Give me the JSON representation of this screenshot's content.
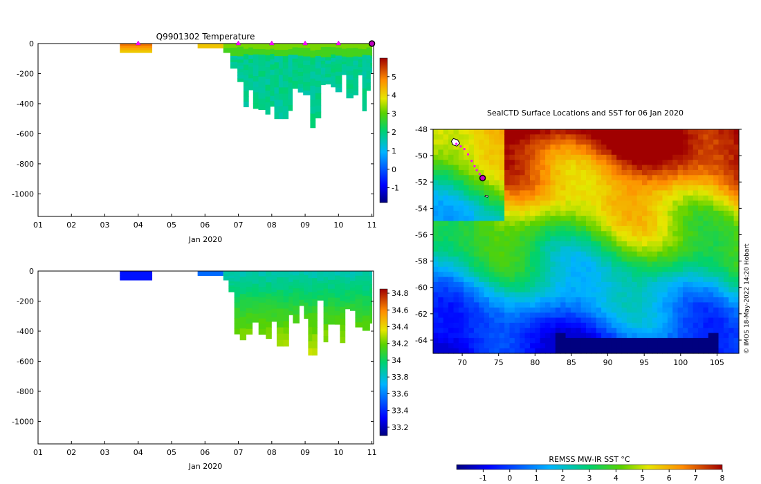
{
  "chart_data": [
    {
      "id": "temperature",
      "type": "heatmap",
      "title": "Q9901302  Temperature",
      "xlabel": "Jan 2020",
      "ylabel": "",
      "xlim": [
        1,
        11.05
      ],
      "ylim": [
        -1150,
        0
      ],
      "x_ticks": [
        "01",
        "02",
        "03",
        "04",
        "05",
        "06",
        "07",
        "08",
        "09",
        "10",
        "11"
      ],
      "y_ticks": [
        0,
        -200,
        -400,
        -600,
        -800,
        -1000
      ],
      "colorbar": {
        "min": -1.8,
        "max": 6,
        "ticks": [
          -1,
          0,
          1,
          2,
          3,
          4,
          5
        ]
      },
      "surface_markers_days": [
        4.0,
        7.0,
        8.0,
        9.0,
        10.0
      ],
      "end_marker_day": 11.0
    },
    {
      "id": "salinity",
      "type": "heatmap",
      "title": "",
      "xlabel": "Jan 2020",
      "ylabel": "",
      "xlim": [
        1,
        11.05
      ],
      "ylim": [
        -1150,
        0
      ],
      "x_ticks": [
        "01",
        "02",
        "03",
        "04",
        "05",
        "06",
        "07",
        "08",
        "09",
        "10",
        "11"
      ],
      "y_ticks": [
        0,
        -200,
        -400,
        -600,
        -800,
        -1000
      ],
      "colorbar": {
        "min": 33.1,
        "max": 34.85,
        "ticks": [
          33.2,
          33.4,
          33.6,
          33.8,
          34,
          34.2,
          34.4,
          34.6,
          34.8
        ]
      }
    },
    {
      "id": "sst_map",
      "type": "heatmap",
      "title": "SealCTD Surface Locations and SST for 06 Jan 2020",
      "xlim": [
        66,
        108
      ],
      "ylim": [
        -65,
        -48
      ],
      "x_ticks": [
        70,
        75,
        80,
        85,
        90,
        95,
        100,
        105
      ],
      "y_ticks": [
        -48,
        -50,
        -52,
        -54,
        -56,
        -58,
        -60,
        -62,
        -64
      ],
      "colorbar": {
        "label": "REMSS MW-IR SST °C",
        "min": -2,
        "max": 8,
        "ticks": [
          -1,
          0,
          1,
          2,
          3,
          4,
          5,
          6,
          7,
          8
        ]
      },
      "credit": "© IMOS 18-May-2022 14:20 Hobart",
      "track_lon": [
        69.2,
        69.8,
        70.3,
        70.8,
        71.3,
        71.7,
        72.0,
        72.4,
        72.8
      ],
      "track_lat": [
        -49.1,
        -49.3,
        -49.5,
        -49.9,
        -50.4,
        -50.8,
        -51.1,
        -51.4,
        -51.7
      ],
      "end_position": [
        72.8,
        -51.7
      ]
    }
  ]
}
